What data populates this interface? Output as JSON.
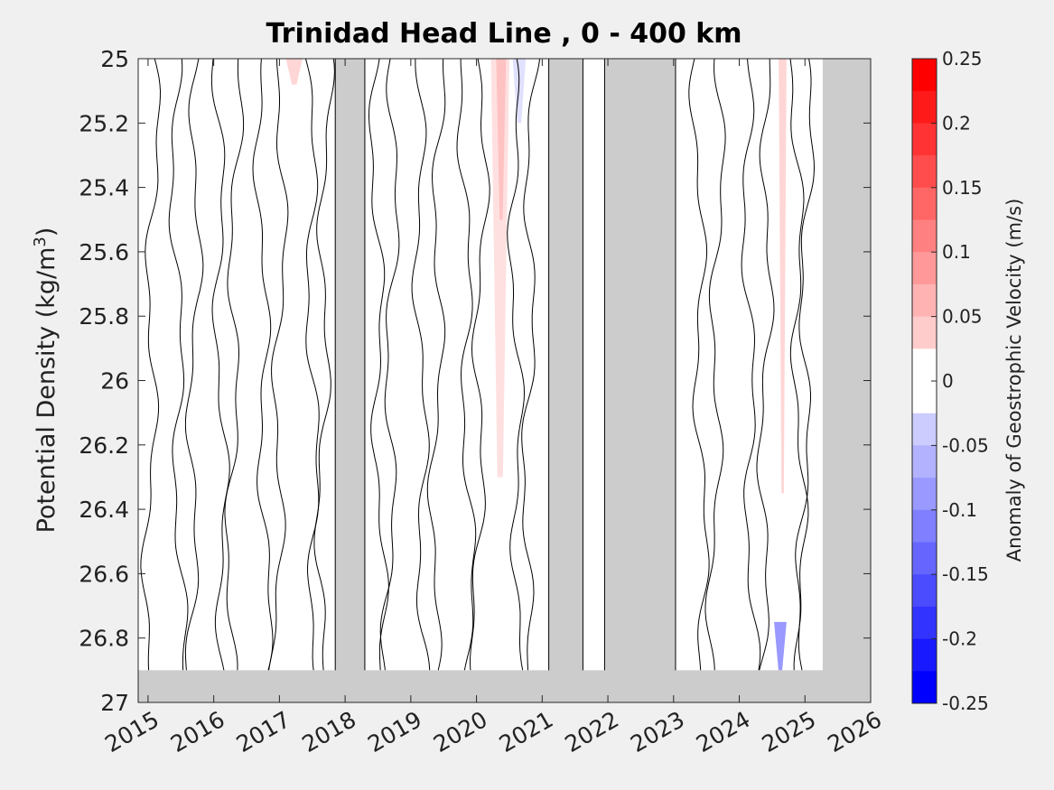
{
  "chart_data": {
    "type": "heatmap",
    "title": "Trinidad Head Line , 0 - 400 km",
    "ylabel_main": "Potential Density (kg/m",
    "ylabel_sup": "3",
    "ylabel_close": ")",
    "y_reversed": true,
    "ylim": [
      25,
      27
    ],
    "yticks": [
      25,
      25.2,
      25.4,
      25.6,
      25.8,
      26,
      26.2,
      26.4,
      26.6,
      26.8,
      27
    ],
    "ytick_labels": [
      "25",
      "25.2",
      "25.4",
      "25.6",
      "25.8",
      "26",
      "26.2",
      "26.4",
      "26.6",
      "26.8",
      "27"
    ],
    "xlim": [
      2014.85,
      2026.0
    ],
    "xticks": [
      2015,
      2016,
      2017,
      2018,
      2019,
      2020,
      2021,
      2022,
      2023,
      2024,
      2025,
      2026
    ],
    "xtick_labels": [
      "2015",
      "2016",
      "2017",
      "2018",
      "2019",
      "2020",
      "2021",
      "2022",
      "2023",
      "2024",
      "2025",
      "2026"
    ],
    "no_data_periods": [
      {
        "start": 2017.85,
        "end": 2018.3,
        "sigma_top": 25,
        "sigma_bottom": 27
      },
      {
        "start": 2021.1,
        "end": 2021.62,
        "sigma_top": 25,
        "sigma_bottom": 27
      },
      {
        "start": 2021.95,
        "end": 2023.03,
        "sigma_top": 25,
        "sigma_bottom": 27
      },
      {
        "start": 2025.27,
        "end": 2026.0,
        "sigma_top": 25,
        "sigma_bottom": 27
      },
      {
        "start": 2014.85,
        "end": 2026.0,
        "sigma_top": 26.9,
        "sigma_bottom": 27
      }
    ],
    "anomaly_patches": [
      {
        "x0": 2017.1,
        "x1": 2017.35,
        "s0": 25,
        "s1": 25.08,
        "value": 0.04
      },
      {
        "x0": 2020.22,
        "x1": 2020.5,
        "s0": 25,
        "s1": 26.3,
        "value": 0.03
      },
      {
        "x0": 2020.3,
        "x1": 2020.45,
        "s0": 25,
        "s1": 25.5,
        "value": 0.06
      },
      {
        "x0": 2020.55,
        "x1": 2020.75,
        "s0": 25,
        "s1": 25.2,
        "value": -0.03
      },
      {
        "x0": 2024.6,
        "x1": 2024.72,
        "s0": 25,
        "s1": 26.35,
        "value": 0.04
      },
      {
        "x0": 2024.53,
        "x1": 2024.72,
        "s0": 26.75,
        "s1": 26.9,
        "value": -0.1
      }
    ],
    "contour_x": [
      2015.1,
      2015.4,
      2015.75,
      2016.05,
      2016.35,
      2016.7,
      2017.05,
      2017.45,
      2017.72,
      2018.45,
      2018.75,
      2019.1,
      2019.45,
      2019.8,
      2020.1,
      2020.55,
      2020.85,
      2023.35,
      2023.7,
      2024.1,
      2024.45,
      2024.85,
      2025.05
    ],
    "colorbar": {
      "label": "Anomaly of Geostrophic Velocity (m/s)",
      "min": -0.25,
      "max": 0.25,
      "step": 0.025,
      "ticks": [
        0.25,
        0.2,
        0.15,
        0.1,
        0.05,
        0,
        -0.05,
        -0.1,
        -0.15,
        -0.2,
        -0.25
      ],
      "tick_labels": [
        "0.25",
        "0.2",
        "0.15",
        "0.1",
        "0.05",
        "0",
        "-0.05",
        "-0.1",
        "-0.15",
        "-0.2",
        "-0.25"
      ],
      "negative_color": "#0000ff",
      "positive_color": "#ff0000",
      "neutral_color": "#ffffff"
    },
    "colors": {
      "background": "#f0f0f0",
      "no_data": "#cccccc",
      "contour": "#000000"
    }
  }
}
